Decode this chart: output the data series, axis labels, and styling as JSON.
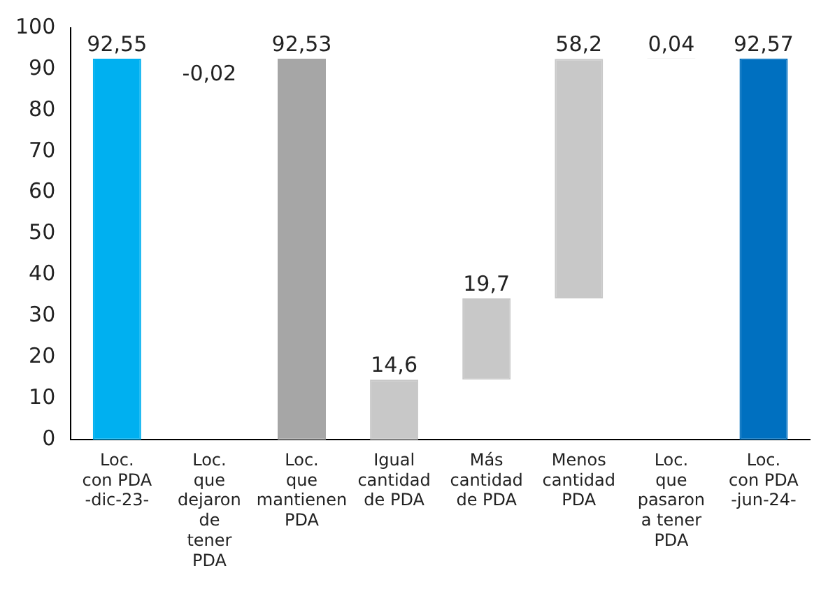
{
  "chart_data": {
    "type": "bar",
    "categories": [
      "Loc. con PDA -dic-23-",
      "Loc. que dejaron de tener PDA",
      "Loc. que mantienen PDA",
      "Igual cantidad de PDA",
      "Más cantidad de PDA",
      "Menos cantidad PDA",
      "Loc. que pasaron a tener PDA",
      "Loc. con PDA -jun-24-"
    ],
    "values": [
      92.55,
      -0.02,
      92.53,
      14.6,
      19.7,
      58.2,
      0.04,
      92.57
    ],
    "base": [
      0,
      92.55,
      0,
      0,
      14.6,
      34.3,
      92.53,
      0
    ],
    "colors": [
      "#00b0f0",
      "#404040",
      "#a6a6a6",
      "#c8c8c8",
      "#c8c8c8",
      "#c8c8c8",
      "#404040",
      "#0070c0"
    ],
    "value_labels": [
      "92,55",
      "-0,02",
      "92,53",
      "14,6",
      "19,7",
      "58,2",
      "0,04",
      "92,57"
    ],
    "ylim": [
      0,
      100
    ],
    "yticks": [
      0,
      10,
      20,
      30,
      40,
      50,
      60,
      70,
      80,
      90,
      100
    ],
    "grid": false,
    "legend": false
  }
}
